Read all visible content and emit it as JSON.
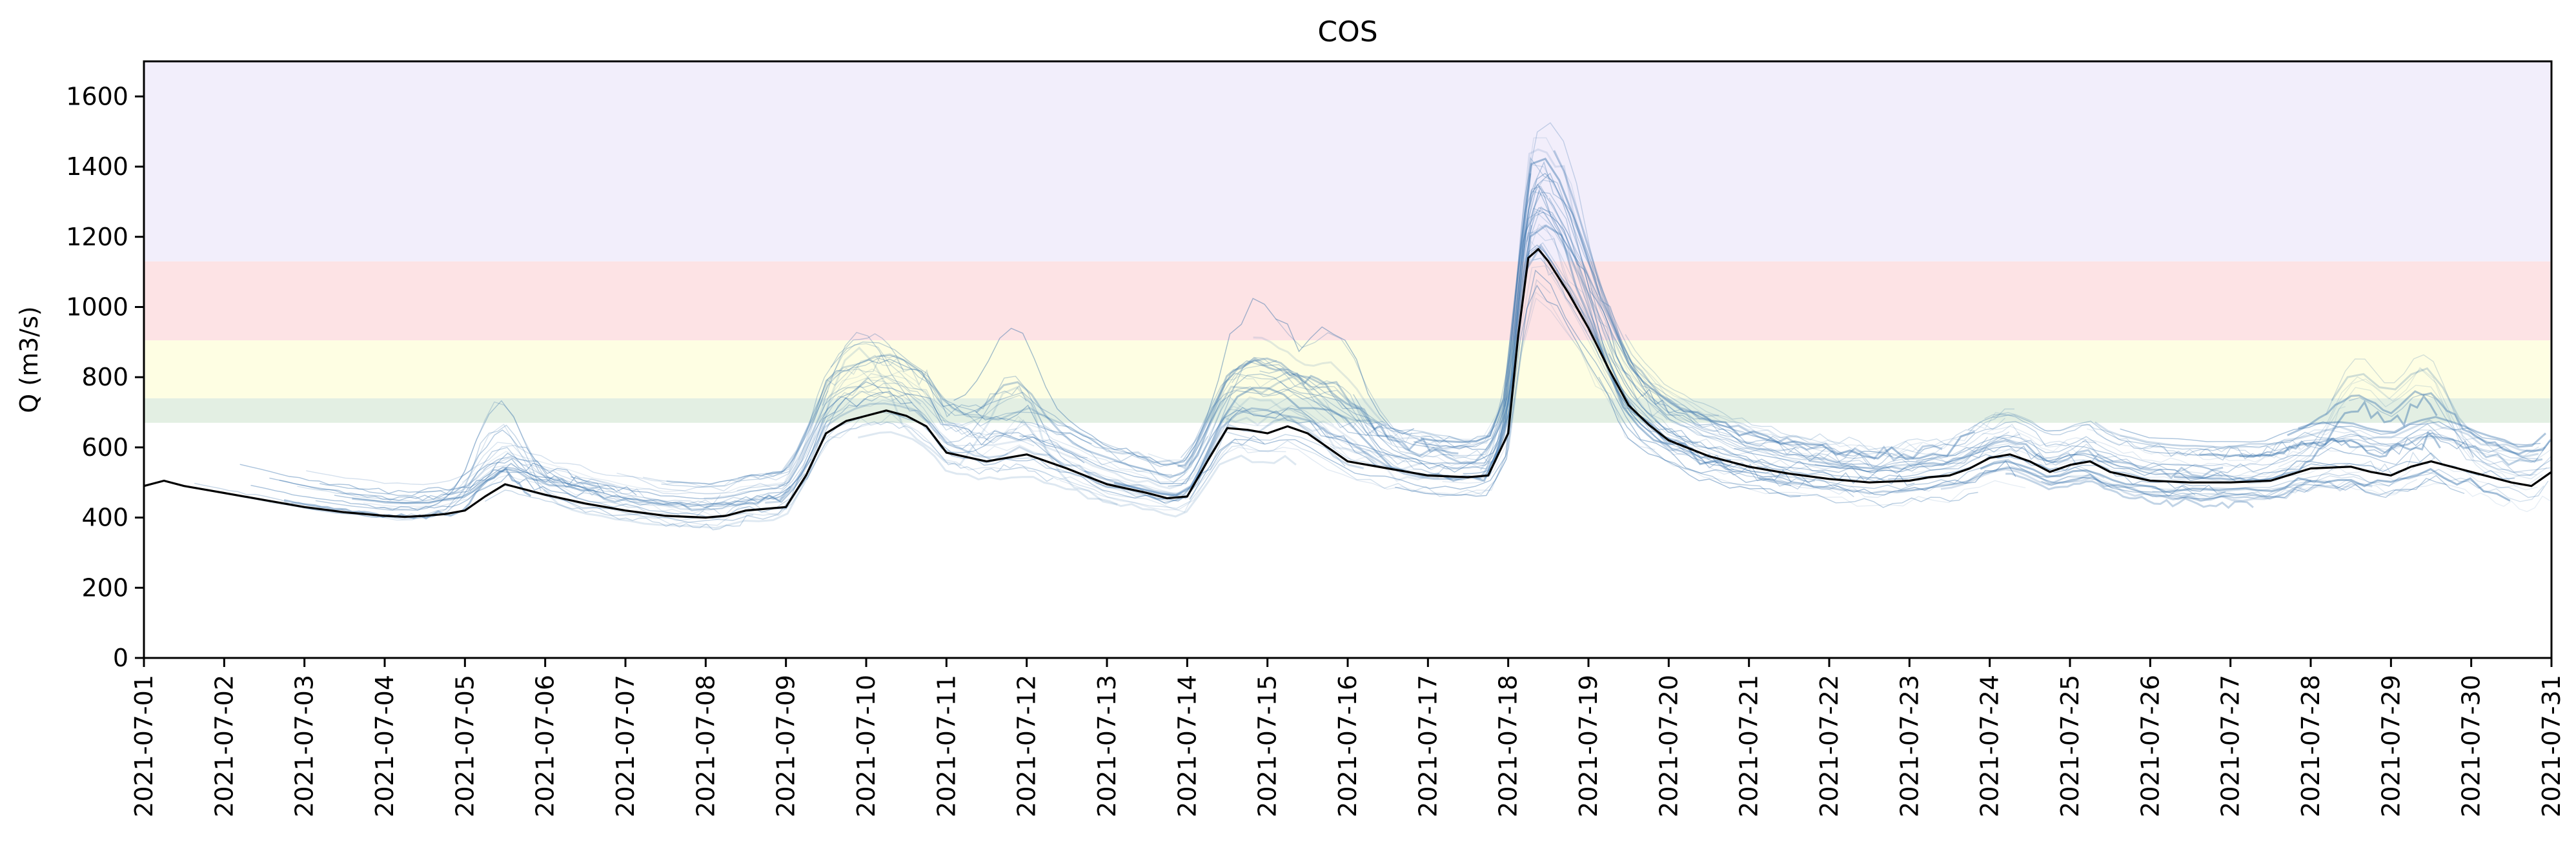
{
  "chart_data": {
    "type": "line",
    "title": "COS",
    "xlabel": "",
    "ylabel": "Q (m3/s)",
    "xlim": [
      "2021-07-01",
      "2021-07-31"
    ],
    "ylim": [
      0,
      1700
    ],
    "x_ticks": [
      "2021-07-01",
      "2021-07-02",
      "2021-07-03",
      "2021-07-04",
      "2021-07-05",
      "2021-07-06",
      "2021-07-07",
      "2021-07-08",
      "2021-07-09",
      "2021-07-10",
      "2021-07-11",
      "2021-07-12",
      "2021-07-13",
      "2021-07-14",
      "2021-07-15",
      "2021-07-16",
      "2021-07-17",
      "2021-07-18",
      "2021-07-19",
      "2021-07-20",
      "2021-07-21",
      "2021-07-22",
      "2021-07-23",
      "2021-07-24",
      "2021-07-25",
      "2021-07-26",
      "2021-07-27",
      "2021-07-28",
      "2021-07-29",
      "2021-07-30",
      "2021-07-31"
    ],
    "y_ticks": [
      0,
      200,
      400,
      600,
      800,
      1000,
      1200,
      1400,
      1600
    ],
    "grid": false,
    "threshold_bands": [
      {
        "from": 670,
        "to": 740,
        "color": "#e3efe3"
      },
      {
        "from": 740,
        "to": 905,
        "color": "#fefee3"
      },
      {
        "from": 905,
        "to": 1130,
        "color": "#fde3e5"
      },
      {
        "from": 1130,
        "to": 1700,
        "color": "#f2eefb"
      }
    ],
    "series": [
      {
        "color": "#000000",
        "x": [
          "2021-07-01 00:00",
          "2021-07-01 06:00",
          "2021-07-01 12:00",
          "2021-07-02 00:00",
          "2021-07-02 12:00",
          "2021-07-03 00:00",
          "2021-07-03 12:00",
          "2021-07-04 00:00",
          "2021-07-04 06:00",
          "2021-07-04 12:00",
          "2021-07-04 18:00",
          "2021-07-05 00:00",
          "2021-07-05 06:00",
          "2021-07-05 12:00",
          "2021-07-06 00:00",
          "2021-07-06 12:00",
          "2021-07-07 00:00",
          "2021-07-07 12:00",
          "2021-07-08 00:00",
          "2021-07-08 06:00",
          "2021-07-08 12:00",
          "2021-07-08 18:00",
          "2021-07-09 00:00",
          "2021-07-09 06:00",
          "2021-07-09 12:00",
          "2021-07-09 18:00",
          "2021-07-10 00:00",
          "2021-07-10 06:00",
          "2021-07-10 12:00",
          "2021-07-10 18:00",
          "2021-07-11 00:00",
          "2021-07-11 12:00",
          "2021-07-12 00:00",
          "2021-07-12 12:00",
          "2021-07-13 00:00",
          "2021-07-13 12:00",
          "2021-07-13 18:00",
          "2021-07-14 00:00",
          "2021-07-14 06:00",
          "2021-07-14 12:00",
          "2021-07-14 18:00",
          "2021-07-15 00:00",
          "2021-07-15 06:00",
          "2021-07-15 12:00",
          "2021-07-16 00:00",
          "2021-07-16 12:00",
          "2021-07-17 00:00",
          "2021-07-17 12:00",
          "2021-07-17 18:00",
          "2021-07-18 00:00",
          "2021-07-18 03:00",
          "2021-07-18 06:00",
          "2021-07-18 09:00",
          "2021-07-18 12:00",
          "2021-07-18 18:00",
          "2021-07-19 00:00",
          "2021-07-19 06:00",
          "2021-07-19 12:00",
          "2021-07-19 18:00",
          "2021-07-20 00:00",
          "2021-07-20 12:00",
          "2021-07-21 00:00",
          "2021-07-21 12:00",
          "2021-07-22 00:00",
          "2021-07-22 12:00",
          "2021-07-23 00:00",
          "2021-07-23 06:00",
          "2021-07-23 12:00",
          "2021-07-23 18:00",
          "2021-07-24 00:00",
          "2021-07-24 06:00",
          "2021-07-24 12:00",
          "2021-07-24 18:00",
          "2021-07-25 00:00",
          "2021-07-25 06:00",
          "2021-07-25 12:00",
          "2021-07-26 00:00",
          "2021-07-26 12:00",
          "2021-07-27 00:00",
          "2021-07-27 12:00",
          "2021-07-28 00:00",
          "2021-07-28 12:00",
          "2021-07-28 18:00",
          "2021-07-29 00:00",
          "2021-07-29 06:00",
          "2021-07-29 12:00",
          "2021-07-30 00:00",
          "2021-07-30 12:00",
          "2021-07-30 18:00",
          "2021-07-31 00:00"
        ],
        "y": [
          490,
          505,
          490,
          470,
          450,
          430,
          415,
          405,
          402,
          405,
          410,
          420,
          460,
          495,
          465,
          440,
          420,
          405,
          400,
          405,
          420,
          425,
          430,
          520,
          640,
          675,
          690,
          705,
          690,
          660,
          585,
          560,
          580,
          540,
          495,
          470,
          455,
          460,
          560,
          655,
          650,
          640,
          660,
          640,
          560,
          540,
          520,
          515,
          520,
          640,
          920,
          1140,
          1165,
          1130,
          1040,
          940,
          825,
          720,
          665,
          620,
          575,
          545,
          525,
          510,
          500,
          505,
          515,
          520,
          540,
          570,
          580,
          560,
          530,
          550,
          560,
          530,
          505,
          500,
          500,
          505,
          540,
          545,
          530,
          520,
          545,
          560,
          530,
          500,
          490,
          530
        ]
      }
    ]
  }
}
